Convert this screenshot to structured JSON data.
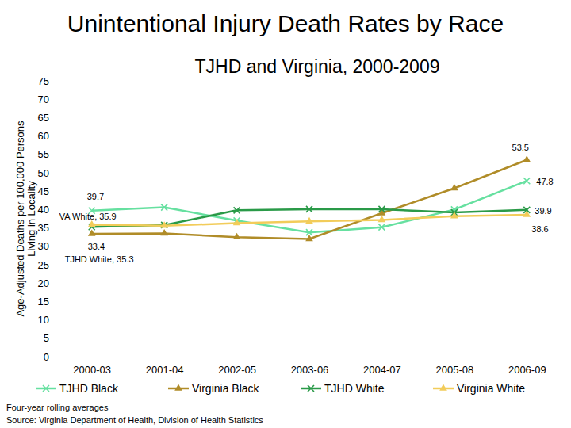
{
  "chart_data": {
    "type": "line",
    "title": "Unintentional Injury Death Rates by Race",
    "subtitle": "TJHD and Virginia, 2000-2009",
    "y_label": [
      "Age-Adjusted Deaths per 100,000 Persons",
      "Living in Locality"
    ],
    "categories": [
      "2000-03",
      "2001-04",
      "2002-05",
      "2003-06",
      "2004-07",
      "2005-08",
      "2006-09"
    ],
    "series": [
      {
        "name": "TJHD Black",
        "color": "#66e0a0",
        "marker": "x",
        "values": [
          39.7,
          40.6,
          37.0,
          33.8,
          35.2,
          40.0,
          47.8
        ]
      },
      {
        "name": "Virginia Black",
        "color": "#b08c28",
        "marker": "triangle",
        "values": [
          33.4,
          33.5,
          32.5,
          32.0,
          39.0,
          45.8,
          53.5
        ]
      },
      {
        "name": "TJHD White",
        "color": "#2a9a48",
        "marker": "x",
        "values": [
          35.3,
          35.8,
          39.8,
          40.1,
          40.1,
          39.2,
          39.9
        ]
      },
      {
        "name": "Virginia White",
        "color": "#f2cc5a",
        "marker": "triangle",
        "values": [
          35.9,
          35.6,
          36.3,
          36.8,
          37.2,
          38.2,
          38.6
        ]
      }
    ],
    "ylim": [
      0,
      75
    ],
    "yticks": [
      0,
      5,
      10,
      15,
      20,
      25,
      30,
      35,
      40,
      45,
      50,
      55,
      60,
      65,
      70,
      75
    ],
    "grid": false,
    "legend": "bottom",
    "annotations": [
      {
        "text": "39.7",
        "x": "2000-03",
        "y": 39.7
      },
      {
        "text": "VA White, 35.9",
        "x": "2000-03",
        "y": 35.9
      },
      {
        "text": "33.4",
        "x": "2000-03",
        "y": 33.4
      },
      {
        "text": "TJHD White, 35.3",
        "x": "2000-03",
        "y": 35.3
      },
      {
        "text": "53.5",
        "x": "2006-09",
        "y": 53.5
      },
      {
        "text": "47.8",
        "x": "2006-09",
        "y": 47.8
      },
      {
        "text": "39.9",
        "x": "2006-09",
        "y": 39.9
      },
      {
        "text": "38.6",
        "x": "2006-09",
        "y": 38.6
      }
    ],
    "notes": [
      "Four-year rolling averages",
      "Source: Virginia Department of Health, Division of Health Statistics"
    ]
  }
}
